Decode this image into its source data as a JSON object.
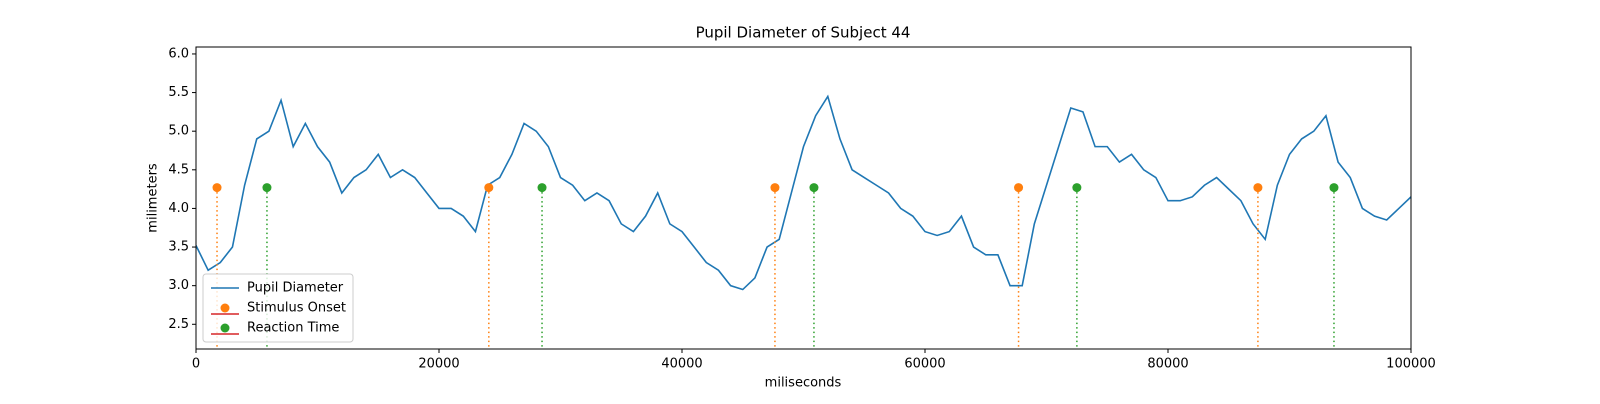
{
  "chart_data": {
    "type": "line",
    "title": "Pupil Diameter of Subject 44",
    "xlabel": "miliseconds",
    "ylabel": "milimeters",
    "xlim": [
      0,
      100000
    ],
    "ylim": [
      2.18,
      6.09
    ],
    "xticks": [
      0,
      20000,
      40000,
      60000,
      80000,
      100000
    ],
    "yticks": [
      2.5,
      {
        "value": 3.0,
        "label": "3.0"
      },
      3.5,
      {
        "value": 4.0,
        "label": "4.0"
      },
      4.5,
      {
        "value": 5.0,
        "label": "5.0"
      },
      5.5,
      {
        "value": 6.0,
        "label": "6.0"
      }
    ],
    "legend": "lower left",
    "series": [
      {
        "name": "Pupil Diameter",
        "color": "#1f77b4",
        "type": "line",
        "x": [
          0,
          1000,
          2000,
          3000,
          4000,
          5000,
          6000,
          7000,
          8000,
          9000,
          10000,
          11000,
          12000,
          13000,
          14000,
          15000,
          16000,
          17000,
          18000,
          19000,
          20000,
          21000,
          22000,
          23000,
          24000,
          25000,
          26000,
          27000,
          28000,
          29000,
          30000,
          31000,
          32000,
          33000,
          34000,
          35000,
          36000,
          37000,
          38000,
          39000,
          40000,
          41000,
          42000,
          43000,
          44000,
          45000,
          46000,
          47000,
          48000,
          49000,
          50000,
          51000,
          52000,
          53000,
          54000,
          55000,
          56000,
          57000,
          58000,
          59000,
          60000,
          61000,
          62000,
          63000,
          64000,
          65000,
          66000,
          67000,
          68000,
          69000,
          70000,
          71000,
          72000,
          73000,
          74000,
          75000,
          76000,
          77000,
          78000,
          79000,
          80000,
          81000,
          82000,
          83000,
          84000,
          85000,
          86000,
          87000,
          88000,
          89000,
          90000,
          91000,
          92000,
          93000,
          94000,
          95000,
          96000,
          97000,
          98000,
          99000,
          100000
        ],
        "values": [
          3.52,
          3.2,
          3.3,
          3.5,
          4.3,
          4.9,
          5.0,
          5.4,
          4.8,
          5.1,
          4.8,
          4.6,
          4.2,
          4.4,
          4.5,
          4.7,
          4.4,
          4.5,
          4.4,
          4.2,
          4.0,
          4.0,
          3.9,
          3.7,
          4.3,
          4.4,
          4.7,
          5.1,
          5.0,
          4.8,
          4.4,
          4.3,
          4.1,
          4.2,
          4.1,
          3.8,
          3.7,
          3.9,
          4.2,
          3.8,
          3.7,
          3.5,
          3.3,
          3.2,
          3.0,
          2.95,
          3.1,
          3.5,
          3.6,
          4.2,
          4.8,
          5.2,
          5.45,
          4.9,
          4.5,
          4.4,
          4.3,
          4.2,
          4.0,
          3.9,
          3.7,
          3.65,
          3.7,
          3.9,
          3.5,
          3.4,
          3.4,
          3.0,
          3.0,
          3.8,
          4.3,
          4.8,
          5.3,
          5.25,
          4.8,
          4.8,
          4.6,
          4.7,
          4.5,
          4.4,
          4.1,
          4.1,
          4.15,
          4.3,
          4.4,
          4.25,
          4.1,
          3.8,
          3.6,
          4.3,
          4.7,
          4.9,
          5.0,
          5.2,
          4.6,
          4.4,
          4.0,
          3.9,
          3.85,
          4.0,
          4.15
        ]
      },
      {
        "name": "Stimulus Onset",
        "color": "#ff7f0e",
        "type": "stem",
        "x": [
          1730,
          24100,
          47650,
          67700,
          87400
        ],
        "values": [
          4.27,
          4.27,
          4.27,
          4.27,
          4.27
        ]
      },
      {
        "name": "Reaction Time",
        "color": "#2ca02c",
        "type": "stem",
        "x": [
          5840,
          28480,
          50860,
          72500,
          93660
        ],
        "values": [
          4.27,
          4.27,
          4.27,
          4.27,
          4.27
        ]
      }
    ]
  }
}
